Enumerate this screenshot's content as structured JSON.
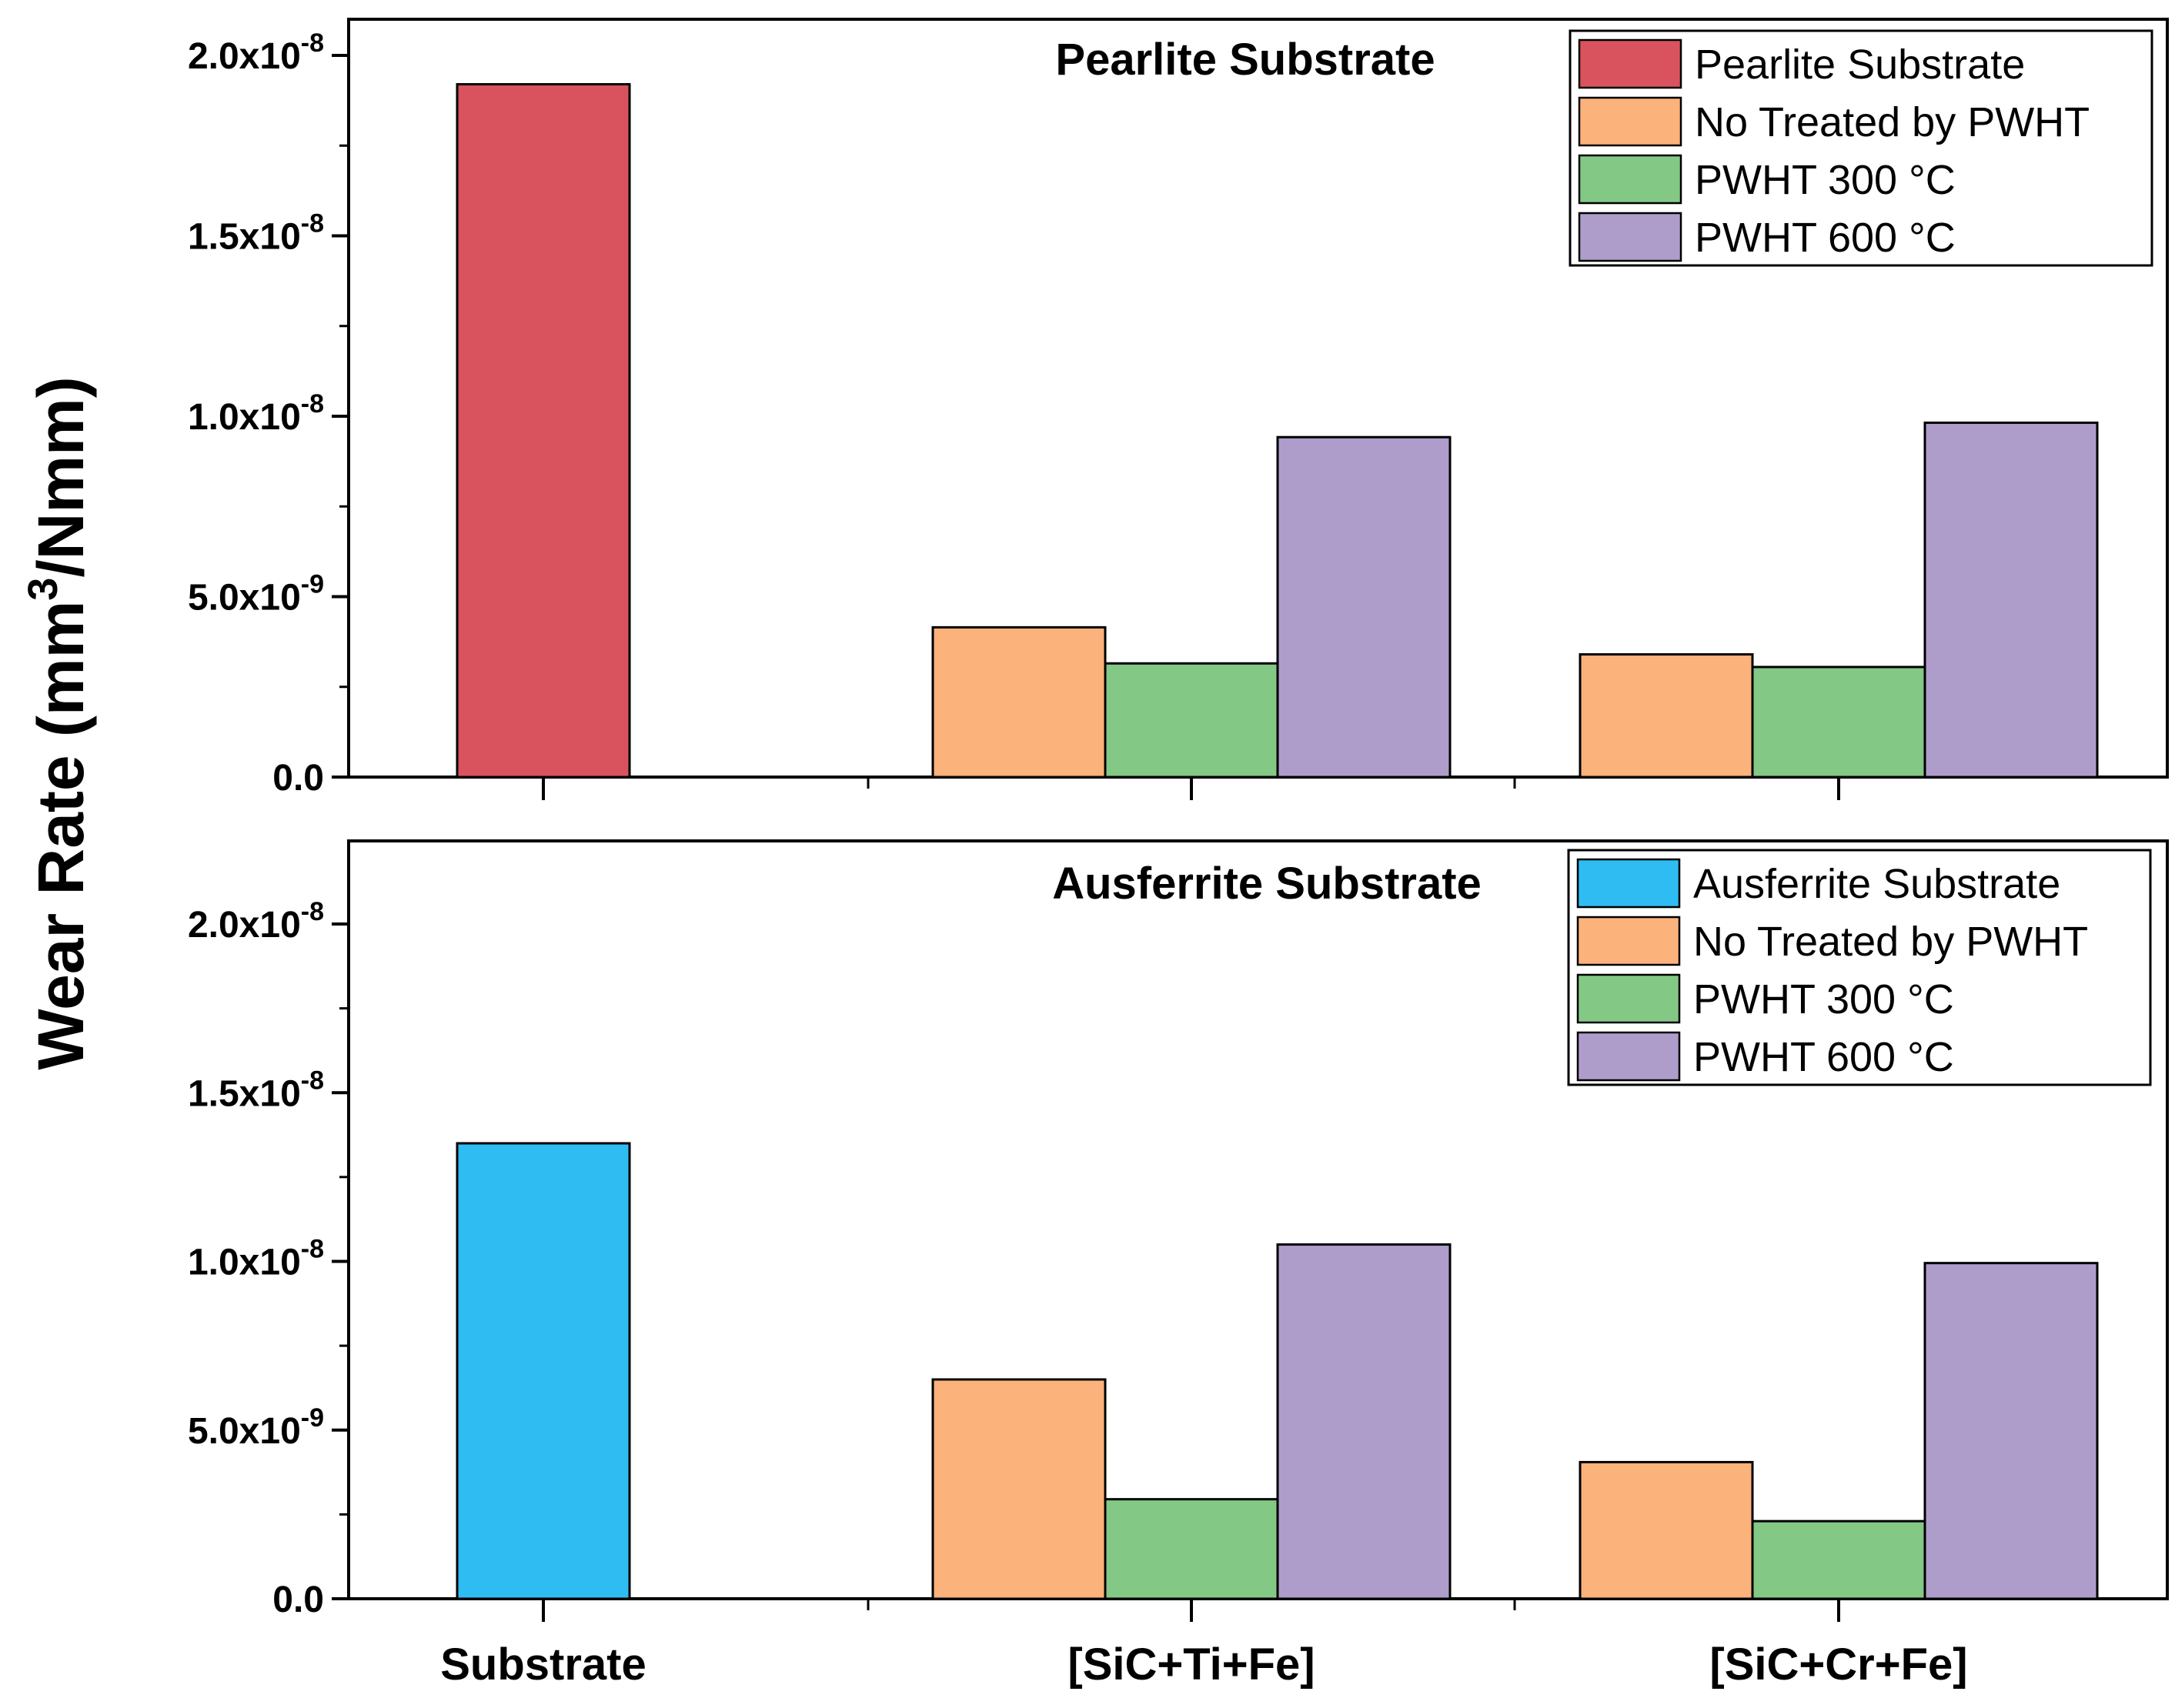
{
  "chart_data": {
    "type": "bar",
    "ylabel": "Wear Rate (mm3/Nmm)",
    "ylabel_parts": {
      "pre": "Wear Rate (mm",
      "sup": "3",
      "post": "/Nmm)"
    },
    "categories": [
      "Substrate",
      "[SiC+Ti+Fe]",
      "[SiC+Cr+Fe]"
    ],
    "ylim": [
      0,
      2e-08
    ],
    "yticks": [
      {
        "value": 0,
        "mantissa": "0.0",
        "exponent": ""
      },
      {
        "value": 5e-09,
        "mantissa": "5.0x10",
        "exponent": "-9"
      },
      {
        "value": 1e-08,
        "mantissa": "1.0x10",
        "exponent": "-8"
      },
      {
        "value": 1.5e-08,
        "mantissa": "1.5x10",
        "exponent": "-8"
      },
      {
        "value": 2e-08,
        "mantissa": "2.0x10",
        "exponent": "-8"
      }
    ],
    "colors": {
      "pearlite_substrate": "#d9535f",
      "ausferrite_substrate": "#2fbcf2",
      "no_pwht": "#fcb27b",
      "pwht_300": "#83c985",
      "pwht_600": "#ae9dca"
    },
    "panels": [
      {
        "title": "Pearlite Substrate",
        "legend": [
          "Pearlite Substrate",
          "No Treated by PWHT",
          "PWHT 300 °C",
          "PWHT 600 °C"
        ],
        "legend_position": "top-right",
        "substrate_color_key": "pearlite_substrate",
        "bars": [
          {
            "category": "Substrate",
            "series": "Pearlite Substrate",
            "value": 1.92e-08
          },
          {
            "category": "[SiC+Ti+Fe]",
            "series": "No Treated by PWHT",
            "value": 4.15e-09
          },
          {
            "category": "[SiC+Ti+Fe]",
            "series": "PWHT 300 °C",
            "value": 3.15e-09
          },
          {
            "category": "[SiC+Ti+Fe]",
            "series": "PWHT 600 °C",
            "value": 9.42e-09
          },
          {
            "category": "[SiC+Cr+Fe]",
            "series": "No Treated by PWHT",
            "value": 3.4e-09
          },
          {
            "category": "[SiC+Cr+Fe]",
            "series": "PWHT 300 °C",
            "value": 3.05e-09
          },
          {
            "category": "[SiC+Cr+Fe]",
            "series": "PWHT 600 °C",
            "value": 9.82e-09
          }
        ]
      },
      {
        "title": "Ausferrite Substrate",
        "legend": [
          "Ausferrite Substrate",
          "No Treated by PWHT",
          "PWHT 300 °C",
          "PWHT 600 °C"
        ],
        "legend_position": "top-right",
        "substrate_color_key": "ausferrite_substrate",
        "bars": [
          {
            "category": "Substrate",
            "series": "Ausferrite Substrate",
            "value": 1.35e-08
          },
          {
            "category": "[SiC+Ti+Fe]",
            "series": "No Treated by PWHT",
            "value": 6.5e-09
          },
          {
            "category": "[SiC+Ti+Fe]",
            "series": "PWHT 300 °C",
            "value": 2.95e-09
          },
          {
            "category": "[SiC+Ti+Fe]",
            "series": "PWHT 600 °C",
            "value": 1.05e-08
          },
          {
            "category": "[SiC+Cr+Fe]",
            "series": "No Treated by PWHT",
            "value": 4.05e-09
          },
          {
            "category": "[SiC+Cr+Fe]",
            "series": "PWHT 300 °C",
            "value": 2.3e-09
          },
          {
            "category": "[SiC+Cr+Fe]",
            "series": "PWHT 600 °C",
            "value": 9.95e-09
          }
        ]
      }
    ]
  }
}
